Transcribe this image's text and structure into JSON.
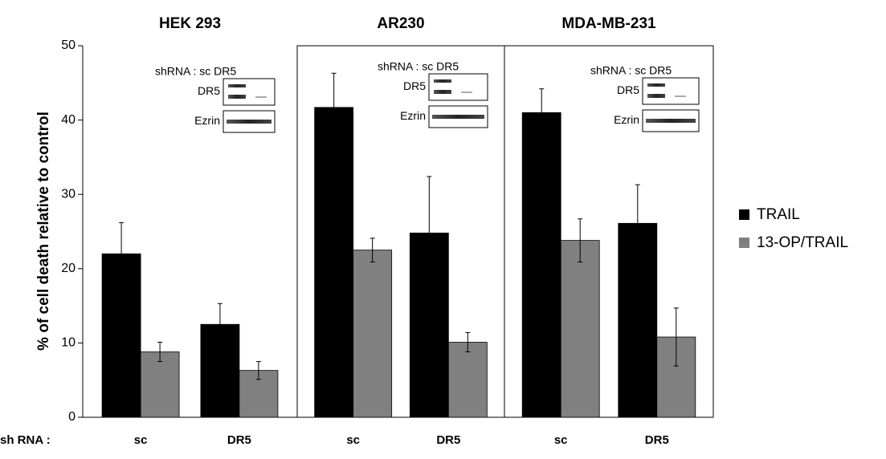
{
  "chart_data": {
    "type": "bar",
    "y_label": "% of cell death relative to control",
    "x_prefix": "sh RNA :",
    "panels": [
      {
        "title": "HEK 293",
        "inset": {
          "header": "shRNA : sc  DR5",
          "rows": [
            "DR5",
            "Ezrin"
          ]
        }
      },
      {
        "title": "AR230",
        "inset": {
          "header": "shRNA : sc  DR5",
          "rows": [
            "DR5",
            "Ezrin"
          ]
        }
      },
      {
        "title": "MDA-MB-231",
        "inset": {
          "header": "shRNA : sc  DR5",
          "rows": [
            "DR5",
            "Ezrin"
          ]
        }
      }
    ],
    "categories": [
      "sc",
      "DR5",
      "sc",
      "DR5",
      "sc",
      "DR5"
    ],
    "series": [
      {
        "name": "TRAIL",
        "color": "#000000",
        "values": [
          22,
          12.5,
          41.7,
          24.8,
          41,
          26.1
        ],
        "errors": [
          4.2,
          2.8,
          4.6,
          7.6,
          3.2,
          5.2
        ]
      },
      {
        "name": "13-OP/TRAIL",
        "color": "#808080",
        "values": [
          8.8,
          6.3,
          22.5,
          10.1,
          23.8,
          10.8
        ],
        "errors": [
          1.3,
          1.2,
          1.6,
          1.3,
          2.9,
          3.9
        ]
      }
    ],
    "ylim": [
      0,
      50
    ],
    "yticks": [
      0,
      10,
      20,
      30,
      40,
      50
    ]
  }
}
